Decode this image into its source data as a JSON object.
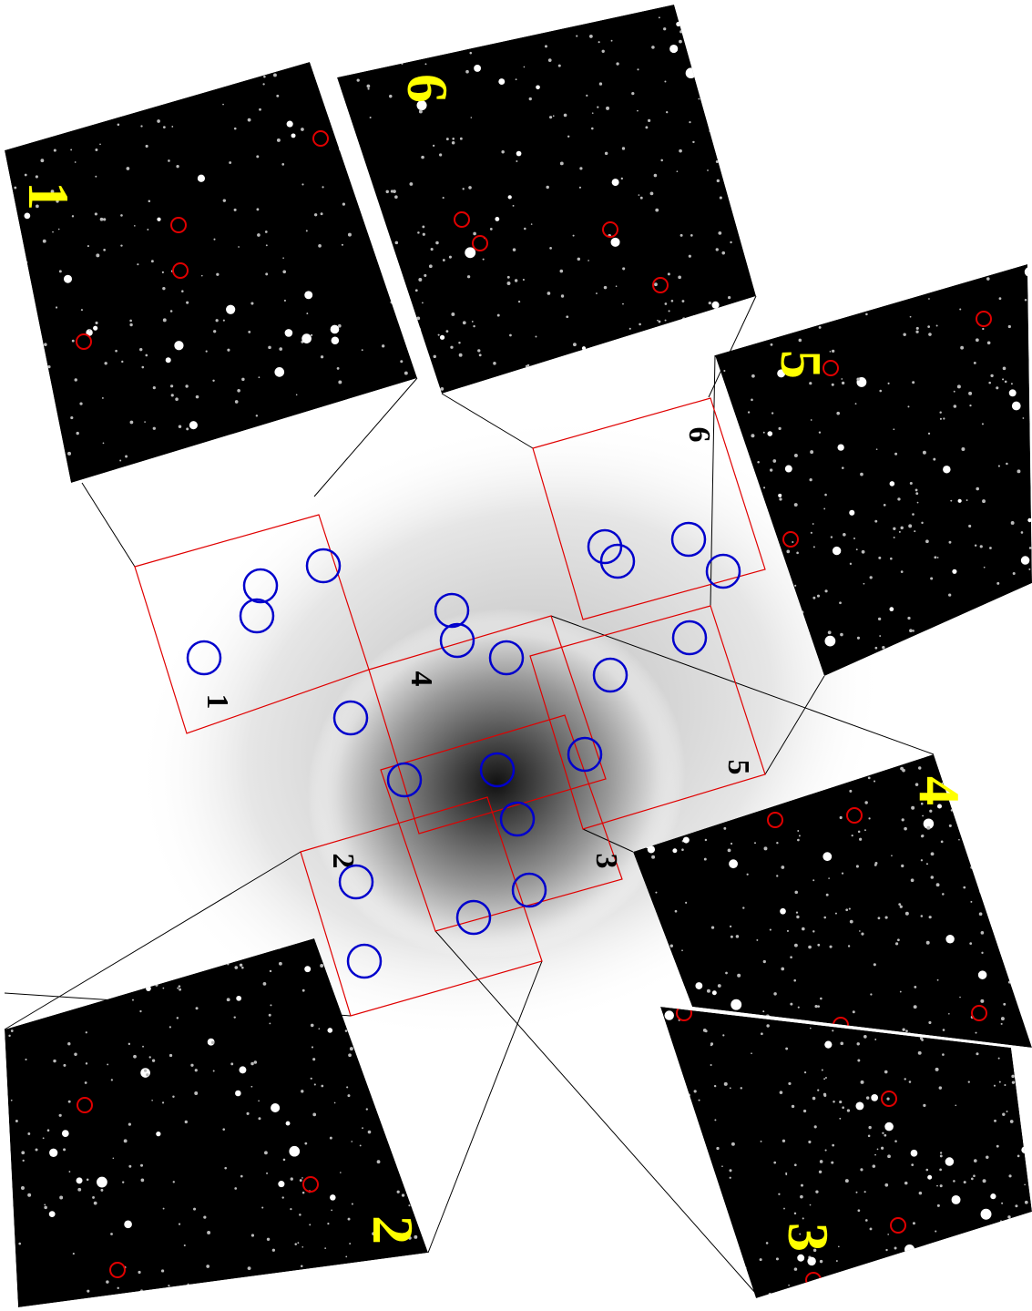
{
  "insets": [
    {
      "label": "1"
    },
    {
      "label": "6"
    },
    {
      "label": "5"
    },
    {
      "label": "4"
    },
    {
      "label": "3"
    },
    {
      "label": "2"
    }
  ],
  "fields": [
    {
      "label": "1"
    },
    {
      "label": "4"
    },
    {
      "label": "5"
    },
    {
      "label": "6"
    },
    {
      "label": "2"
    },
    {
      "label": "3"
    }
  ]
}
